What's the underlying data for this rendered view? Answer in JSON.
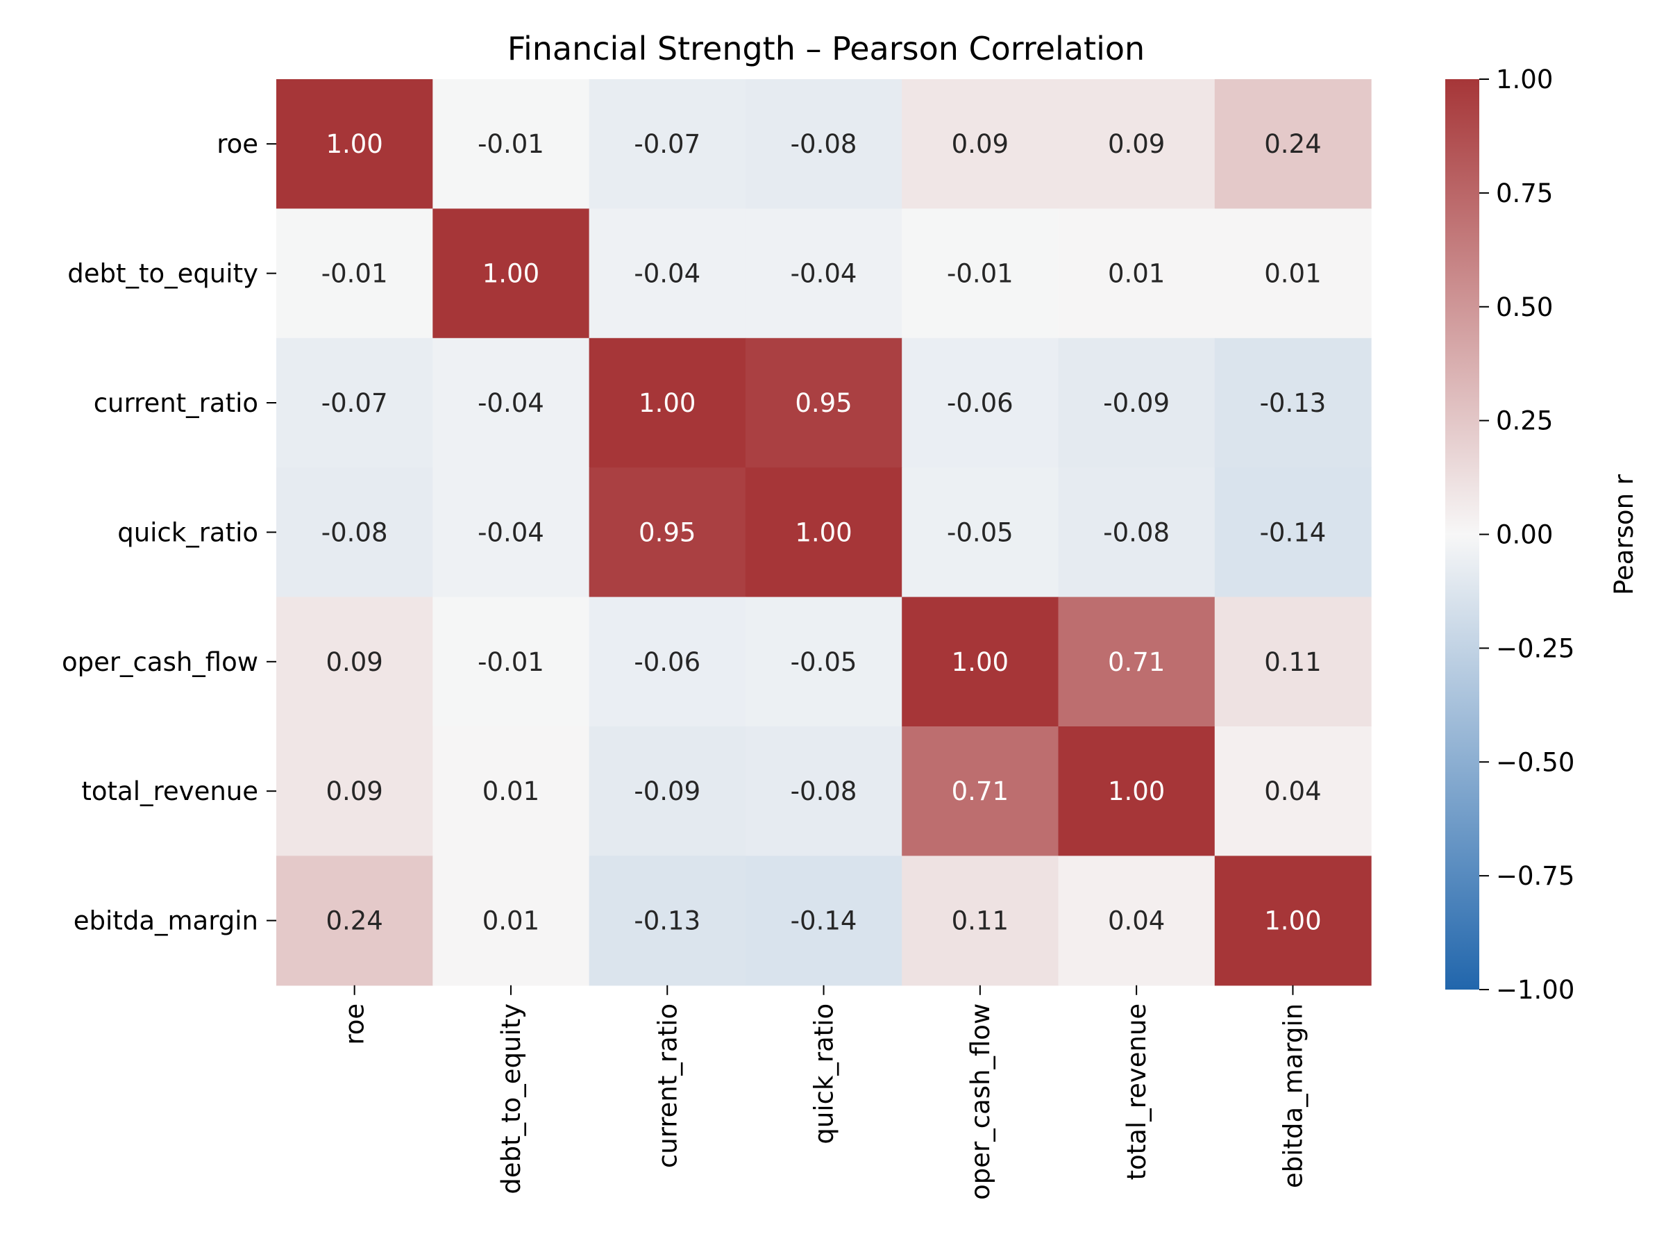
{
  "chart_data": {
    "type": "heatmap",
    "title": "Financial Strength – Pearson Correlation",
    "row_labels": [
      "roe",
      "debt_to_equity",
      "current_ratio",
      "quick_ratio",
      "oper_cash_flow",
      "total_revenue",
      "ebitda_margin"
    ],
    "col_labels": [
      "roe",
      "debt_to_equity",
      "current_ratio",
      "quick_ratio",
      "oper_cash_flow",
      "total_revenue",
      "ebitda_margin"
    ],
    "values": [
      [
        1.0,
        -0.01,
        -0.07,
        -0.08,
        0.09,
        0.09,
        0.24
      ],
      [
        -0.01,
        1.0,
        -0.04,
        -0.04,
        -0.01,
        0.01,
        0.01
      ],
      [
        -0.07,
        -0.04,
        1.0,
        0.95,
        -0.06,
        -0.09,
        -0.13
      ],
      [
        -0.08,
        -0.04,
        0.95,
        1.0,
        -0.05,
        -0.08,
        -0.14
      ],
      [
        0.09,
        -0.01,
        -0.06,
        -0.05,
        1.0,
        0.71,
        0.11
      ],
      [
        0.09,
        0.01,
        -0.09,
        -0.08,
        0.71,
        1.0,
        0.04
      ],
      [
        0.24,
        0.01,
        -0.13,
        -0.14,
        0.11,
        0.04,
        1.0
      ]
    ],
    "value_format": "0.00",
    "colormap": "vlag (blue–white–red)",
    "color_low": "#2166ac",
    "color_mid": "#f7f7f7",
    "color_high": "#a63638",
    "vmin": -1.0,
    "vmax": 1.0,
    "colorbar": {
      "label": "Pearson r",
      "ticks": [
        1.0,
        0.75,
        0.5,
        0.25,
        0.0,
        -0.25,
        -0.5,
        -0.75,
        -1.0
      ],
      "tick_labels": [
        "1.00",
        "0.75",
        "0.50",
        "0.25",
        "0.00",
        "−0.25",
        "−0.50",
        "−0.75",
        "−1.00"
      ]
    },
    "grid": false,
    "legend": "colorbar-right"
  }
}
